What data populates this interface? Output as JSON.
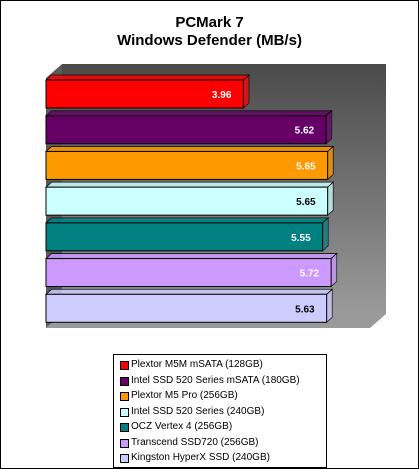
{
  "chart_data": {
    "type": "bar",
    "orientation": "horizontal",
    "title": "PCMark 7",
    "subtitle": "Windows   Defender (MB/s)",
    "xlim": [
      0,
      6.5
    ],
    "categories": [
      "Plextor M5M  mSATA (128GB)",
      "Intel SSD 520 Series mSATA (180GB)",
      "Plextor M5 Pro (256GB)",
      "Intel SSD 520 Series (240GB)",
      "OCZ Vertex 4 (256GB)",
      "Transcend SSD720 (256GB)",
      "Kingston HyperX SSD (240GB)"
    ],
    "values": [
      3.96,
      5.62,
      5.65,
      5.65,
      5.55,
      5.72,
      5.63
    ],
    "data_labels": [
      "3.96",
      "5.62",
      "5.65",
      "5.65",
      "5.55",
      "5.72",
      "5.63"
    ],
    "colors": [
      "#ff0000",
      "#660066",
      "#ff9900",
      "#ccffff",
      "#008080",
      "#cc99ff",
      "#ccccff"
    ],
    "label_colors": [
      "#ffffff",
      "#ffffff",
      "#ffffff",
      "#000000",
      "#ffffff",
      "#ffffff",
      "#000000"
    ],
    "plot_background": "#808080",
    "legend_position": "bottom",
    "grid": false
  }
}
